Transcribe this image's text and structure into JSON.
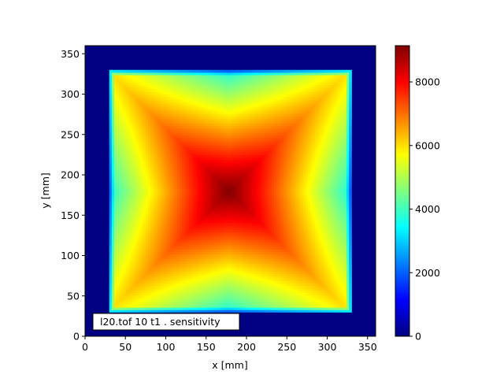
{
  "chart_data": {
    "type": "heatmap",
    "colormap": "jet",
    "xlabel": "x [mm]",
    "ylabel": "y [mm]",
    "xlim": [
      0,
      360
    ],
    "ylim": [
      0,
      360
    ],
    "xticks": [
      "0",
      "50",
      "100",
      "150",
      "200",
      "250",
      "300",
      "350"
    ],
    "yticks": [
      "0",
      "50",
      "100",
      "150",
      "200",
      "250",
      "300",
      "350"
    ],
    "colorbar": {
      "range": [
        0,
        9140
      ],
      "ticks": [
        "0",
        "2000",
        "4000",
        "6000",
        "8000"
      ]
    },
    "annotation": "l20.tof 10 t1 .  sensitivity",
    "grid": false,
    "nonzero_region": {
      "x": [
        30,
        330
      ],
      "y": [
        30,
        330
      ]
    },
    "peak": {
      "x": 178,
      "y": 180,
      "value": 9100
    },
    "edge_midpoint_value": 3600,
    "corner_value": 5900,
    "background_value": 0
  }
}
